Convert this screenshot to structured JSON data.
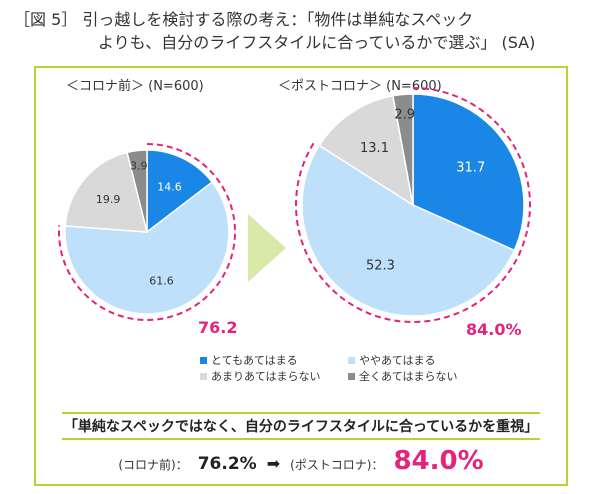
{
  "title_line1": "［図 5］ 引っ越しを検討する際の考え：「物件は単純なスペック",
  "title_line2": "よりも、自分のライフスタイルに合っているかで選ぶ」 (SA)",
  "chart_data": [
    {
      "type": "pie",
      "subtitle": "＜コロナ前＞ (N=600)",
      "categories": [
        "とてもあてはまる",
        "ややあてはまる",
        "あまりあてはまらない",
        "全くあてはまらない"
      ],
      "values": [
        14.6,
        61.6,
        19.9,
        3.9
      ],
      "labels": [
        "14.6",
        "61.6",
        "19.9",
        "3.9"
      ],
      "combined_label": "76.2"
    },
    {
      "type": "pie",
      "subtitle": "＜ポストコロナ＞ (N=600)",
      "categories": [
        "とてもあてはまる",
        "ややあてはまる",
        "あまりあてはまらない",
        "全くあてはまらない"
      ],
      "values": [
        31.7,
        52.3,
        13.1,
        2.9
      ],
      "labels": [
        "31.7",
        "52.3",
        "13.1",
        "2.9"
      ],
      "combined_label": "84.0%"
    }
  ],
  "colors": [
    "#1a87e6",
    "#bfe0fb",
    "#d9d9d9",
    "#8c8c8c"
  ],
  "accent": "#e4237b",
  "legend": [
    "とてもあてはまる",
    "ややあてはまる",
    "あまりあてはまらない",
    "全くあてはまらない"
  ],
  "summary": {
    "headline": "「単純なスペックではなく、自分のライフスタイルに合っているかを重視」",
    "before_label": "(コロナ前)：",
    "before_value": "76.2%",
    "arrow": "➡",
    "after_label": "(ポストコロナ)：",
    "after_value": "84.0%"
  }
}
